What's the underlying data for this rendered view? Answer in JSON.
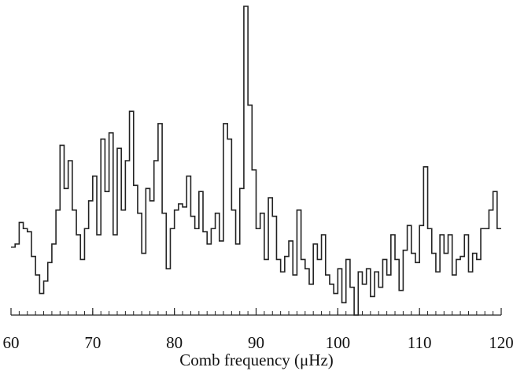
{
  "chart_data": {
    "type": "step",
    "xlabel": "Comb frequency (μHz)",
    "x": [
      60,
      60.5,
      61,
      61.5,
      62,
      62.5,
      63,
      63.5,
      64,
      64.5,
      65,
      65.5,
      66,
      66.5,
      67,
      67.5,
      68,
      68.5,
      69,
      69.5,
      70,
      70.5,
      71,
      71.5,
      72,
      72.5,
      73,
      73.5,
      74,
      74.5,
      75,
      75.5,
      76,
      76.5,
      77,
      77.5,
      78,
      78.5,
      79,
      79.5,
      80,
      80.5,
      81,
      81.5,
      82,
      82.5,
      83,
      83.5,
      84,
      84.5,
      85,
      85.5,
      86,
      86.5,
      87,
      87.5,
      88,
      88.5,
      89,
      89.5,
      90,
      90.5,
      91,
      91.5,
      92,
      92.5,
      93,
      93.5,
      94,
      94.5,
      95,
      95.5,
      96,
      96.5,
      97,
      97.5,
      98,
      98.5,
      99,
      99.5,
      100,
      100.5,
      101,
      101.5,
      102,
      102.5,
      103,
      103.5,
      104,
      104.5,
      105,
      105.5,
      106,
      106.5,
      107,
      107.5,
      108,
      108.5,
      109,
      109.5,
      110,
      110.5,
      111,
      111.5,
      112,
      112.5,
      113,
      113.5,
      114,
      114.5,
      115,
      115.5,
      116,
      116.5,
      117,
      117.5,
      118,
      118.5,
      119,
      119.5
    ],
    "values": [
      22,
      23,
      30,
      28,
      27,
      19,
      13,
      7,
      11,
      17,
      23,
      34,
      55,
      41,
      50,
      34,
      26,
      18,
      28,
      37,
      45,
      26,
      57,
      40,
      59,
      26,
      54,
      34,
      50,
      66,
      42,
      33,
      20,
      41,
      37,
      50,
      62,
      33,
      15,
      28,
      34,
      36,
      35,
      45,
      32,
      28,
      40,
      27,
      23,
      28,
      33,
      24,
      62,
      57,
      34,
      23,
      41,
      100,
      68,
      47,
      28,
      33,
      18,
      38,
      32,
      18,
      14,
      19,
      24,
      13,
      34,
      18,
      15,
      10,
      23,
      18,
      26,
      13,
      10,
      7,
      15,
      4,
      18,
      9,
      0,
      14,
      10,
      15,
      6,
      14,
      9,
      18,
      13,
      26,
      18,
      8,
      21,
      29,
      20,
      17,
      29,
      48,
      28,
      20,
      14,
      26,
      20,
      26,
      13,
      18,
      19,
      26,
      14,
      20,
      18,
      28,
      28,
      34,
      40,
      28
    ],
    "color": "#222222",
    "xlim": [
      60,
      120
    ],
    "ylim": [
      0,
      100
    ],
    "xticks": [
      60,
      70,
      80,
      90,
      100,
      110,
      120
    ],
    "xminorticks": [
      60,
      61,
      62,
      63,
      64,
      65,
      66,
      67,
      68,
      69,
      70,
      71,
      72,
      73,
      74,
      75,
      76,
      77,
      78,
      79,
      80,
      81,
      82,
      83,
      84,
      85,
      86,
      87,
      88,
      89,
      90,
      91,
      92,
      93,
      94,
      95,
      96,
      97,
      98,
      99,
      100,
      101,
      102,
      103,
      104,
      105,
      106,
      107,
      108,
      109,
      110,
      111,
      112,
      113,
      114,
      115,
      116,
      117,
      118,
      119,
      120
    ]
  }
}
